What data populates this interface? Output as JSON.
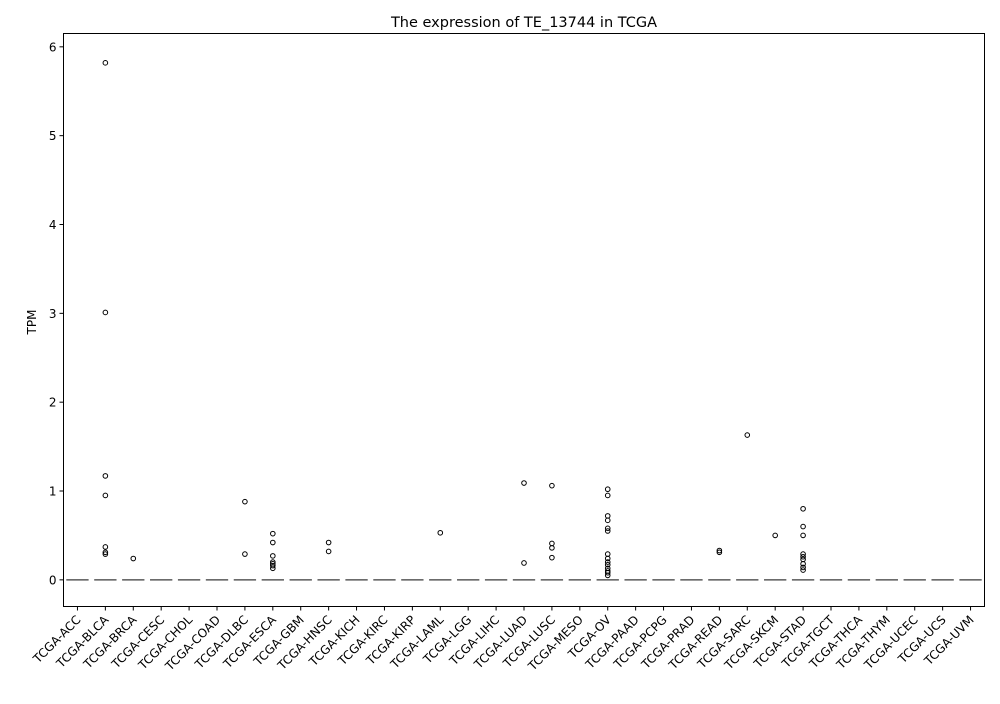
{
  "chart_data": {
    "type": "box",
    "title": "The expression of TE_13744 in TCGA",
    "xlabel": "",
    "ylabel": "TPM",
    "ylim": [
      -0.3,
      6.15
    ],
    "yticks": [
      0,
      1,
      2,
      3,
      4,
      5,
      6
    ],
    "grid": false,
    "categories": [
      "TCGA-ACC",
      "TCGA-BLCA",
      "TCGA-BRCA",
      "TCGA-CESC",
      "TCGA-CHOL",
      "TCGA-COAD",
      "TCGA-DLBC",
      "TCGA-ESCA",
      "TCGA-GBM",
      "TCGA-HNSC",
      "TCGA-KICH",
      "TCGA-KIRC",
      "TCGA-KIRP",
      "TCGA-LAML",
      "TCGA-LGG",
      "TCGA-LIHC",
      "TCGA-LUAD",
      "TCGA-LUSC",
      "TCGA-MESO",
      "TCGA-OV",
      "TCGA-PAAD",
      "TCGA-PCPG",
      "TCGA-PRAD",
      "TCGA-READ",
      "TCGA-SARC",
      "TCGA-SKCM",
      "TCGA-STAD",
      "TCGA-TGCT",
      "TCGA-THCA",
      "TCGA-THYM",
      "TCGA-UCEC",
      "TCGA-UCS",
      "TCGA-UVM"
    ],
    "median": [
      0,
      0,
      0,
      0,
      0,
      0,
      0,
      0,
      0,
      0,
      0,
      0,
      0,
      0,
      0,
      0,
      0,
      0,
      0,
      0,
      0,
      0,
      0,
      0,
      0,
      0,
      0,
      0,
      0,
      0,
      0,
      0,
      0
    ],
    "outliers": [
      [],
      [
        5.82,
        3.01,
        1.17,
        0.95,
        0.37,
        0.31,
        0.29
      ],
      [
        0.24
      ],
      [],
      [],
      [],
      [
        0.88,
        0.29
      ],
      [
        0.52,
        0.42,
        0.27,
        0.2,
        0.18,
        0.16,
        0.13
      ],
      [],
      [
        0.42,
        0.32
      ],
      [],
      [],
      [],
      [
        0.53
      ],
      [],
      [],
      [
        1.09,
        0.19
      ],
      [
        1.06,
        0.41,
        0.36,
        0.25
      ],
      [],
      [
        1.02,
        0.95,
        0.72,
        0.67,
        0.58,
        0.55,
        0.29,
        0.24,
        0.2,
        0.17,
        0.13,
        0.1,
        0.08,
        0.05
      ],
      [],
      [],
      [],
      [
        0.33,
        0.31
      ],
      [
        1.63
      ],
      [
        0.5
      ],
      [
        0.8,
        0.6,
        0.5,
        0.29,
        0.26,
        0.23,
        0.18,
        0.14,
        0.11
      ],
      [],
      [],
      [],
      [],
      [],
      []
    ]
  }
}
